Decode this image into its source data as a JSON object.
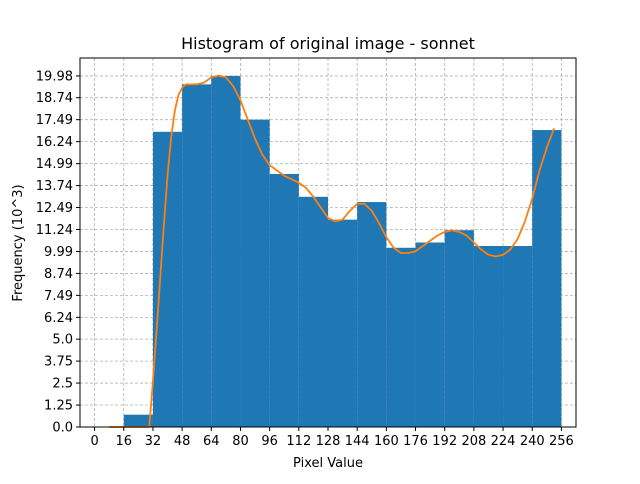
{
  "chart_data": {
    "type": "bar",
    "title": "Histogram of original image - sonnet",
    "xlabel": "Pixel Value",
    "ylabel": "Frequency (10^3)",
    "xlim": [
      -8,
      264
    ],
    "ylim": [
      0,
      21.0
    ],
    "x_ticks": [
      "0",
      "16",
      "32",
      "48",
      "64",
      "80",
      "96",
      "112",
      "128",
      "144",
      "160",
      "176",
      "192",
      "208",
      "224",
      "240",
      "256"
    ],
    "x_tick_values": [
      0,
      16,
      32,
      48,
      64,
      80,
      96,
      112,
      128,
      144,
      160,
      176,
      192,
      208,
      224,
      240,
      256
    ],
    "y_ticks": [
      "0.0",
      "1.25",
      "2.5",
      "3.75",
      "5.0",
      "6.24",
      "7.49",
      "8.74",
      "9.99",
      "11.24",
      "12.49",
      "13.74",
      "14.99",
      "16.24",
      "17.49",
      "18.74",
      "19.98"
    ],
    "y_tick_values": [
      0.0,
      1.25,
      2.5,
      3.75,
      5.0,
      6.24,
      7.49,
      8.74,
      9.99,
      11.24,
      12.49,
      13.74,
      14.99,
      16.24,
      17.49,
      18.74,
      19.98
    ],
    "grid": true,
    "bar_color": "#1f77b4",
    "line_color": "#ff7f0e",
    "bins": [
      {
        "start": 0,
        "end": 16,
        "value": 0.0
      },
      {
        "start": 16,
        "end": 32,
        "value": 0.7
      },
      {
        "start": 32,
        "end": 48,
        "value": 16.8
      },
      {
        "start": 48,
        "end": 64,
        "value": 19.5
      },
      {
        "start": 64,
        "end": 80,
        "value": 19.98
      },
      {
        "start": 80,
        "end": 96,
        "value": 17.49
      },
      {
        "start": 96,
        "end": 112,
        "value": 14.4
      },
      {
        "start": 112,
        "end": 128,
        "value": 13.1
      },
      {
        "start": 128,
        "end": 144,
        "value": 11.8
      },
      {
        "start": 144,
        "end": 160,
        "value": 12.8
      },
      {
        "start": 160,
        "end": 176,
        "value": 10.2
      },
      {
        "start": 176,
        "end": 192,
        "value": 10.5
      },
      {
        "start": 192,
        "end": 208,
        "value": 11.2
      },
      {
        "start": 208,
        "end": 224,
        "value": 10.3
      },
      {
        "start": 224,
        "end": 240,
        "value": 10.3
      },
      {
        "start": 240,
        "end": 256,
        "value": 16.9
      }
    ],
    "kde_curve": {
      "x": [
        8,
        12,
        16,
        20,
        24,
        28,
        30,
        32,
        34,
        36,
        38,
        40,
        42,
        44,
        46,
        48,
        50,
        52,
        56,
        60,
        64,
        68,
        72,
        76,
        80,
        84,
        88,
        92,
        96,
        100,
        104,
        108,
        112,
        116,
        120,
        124,
        128,
        132,
        136,
        140,
        144,
        148,
        152,
        156,
        160,
        164,
        168,
        172,
        176,
        180,
        184,
        188,
        192,
        196,
        200,
        204,
        208,
        212,
        216,
        220,
        224,
        228,
        232,
        236,
        240,
        244,
        248,
        252
      ],
      "y": [
        0,
        0,
        0,
        0,
        0,
        0,
        0,
        2.6,
        5.5,
        8.5,
        11.5,
        14.3,
        16.5,
        18.0,
        18.9,
        19.3,
        19.5,
        19.5,
        19.5,
        19.6,
        19.9,
        20.0,
        19.9,
        19.4,
        18.6,
        17.5,
        16.4,
        15.5,
        14.9,
        14.6,
        14.3,
        14.1,
        13.9,
        13.6,
        13.1,
        12.5,
        11.9,
        11.7,
        11.8,
        12.3,
        12.7,
        12.7,
        12.3,
        11.6,
        10.8,
        10.2,
        9.9,
        9.9,
        10.0,
        10.3,
        10.6,
        10.9,
        11.1,
        11.2,
        11.1,
        10.9,
        10.5,
        10.1,
        9.8,
        9.7,
        9.8,
        10.1,
        10.7,
        11.7,
        13.0,
        14.6,
        15.9,
        17.0
      ]
    }
  }
}
